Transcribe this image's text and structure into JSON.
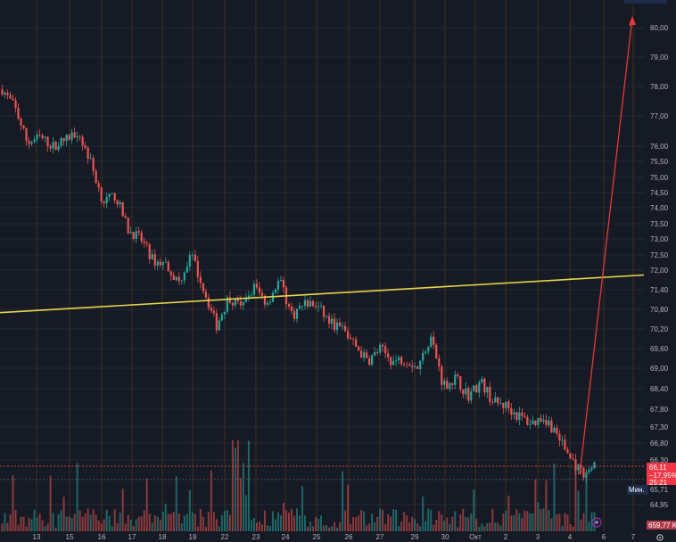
{
  "colors": {
    "background": "#161a25",
    "grid": "#242836",
    "grid_vertical": "#3a3020",
    "up": "#26a69a",
    "down": "#ef5350",
    "trendline": "#e8d74a",
    "arrow": "#e53935",
    "axis_text": "#b2b5be",
    "price_badge": "#f23645",
    "min_badge": "#1e2c4a"
  },
  "price_axis": {
    "labels": [
      "80,00",
      "79,00",
      "78,00",
      "77,00",
      "76,00",
      "75,50",
      "75,00",
      "74,50",
      "74,00",
      "73,50",
      "73,00",
      "72,50",
      "72,00",
      "71,40",
      "70,80",
      "70,20",
      "69,60",
      "69,00",
      "68,40",
      "67,80",
      "67,30",
      "66,80",
      "66,30",
      "64,95"
    ],
    "current_price": "66,11",
    "change_percent": "−17,95%",
    "countdown": "25:21",
    "min_label": "Мин.",
    "min_value": "65,71",
    "volume_badge": "659,77 K"
  },
  "time_axis": {
    "labels": [
      "13",
      "15",
      "16",
      "17",
      "18",
      "19",
      "22",
      "23",
      "24",
      "25",
      "26",
      "27",
      "29",
      "30",
      "Окт",
      "2",
      "3",
      "4",
      "6",
      "7"
    ]
  },
  "icons": {
    "lightning": "lightning-icon",
    "settings": "gear-icon"
  },
  "chart_data": {
    "type": "candlestick",
    "title": "",
    "x": [
      "13",
      "15",
      "16",
      "17",
      "18",
      "19",
      "22",
      "23",
      "24",
      "25",
      "26",
      "27",
      "29",
      "30",
      "Окт",
      "2",
      "3",
      "4",
      "6",
      "7"
    ],
    "close_path": [
      77.9,
      77.3,
      76.1,
      76.3,
      76.0,
      76.2,
      76.5,
      75.5,
      74.2,
      74.4,
      73.3,
      73.0,
      72.3,
      72.2,
      71.6,
      72.5,
      71.4,
      70.3,
      71.2,
      70.8,
      71.5,
      71.0,
      71.7,
      70.6,
      71.0,
      70.9,
      70.4,
      70.2,
      69.7,
      69.2,
      69.6,
      69.2,
      69.3,
      69.0,
      70.0,
      68.5,
      68.7,
      68.2,
      68.6,
      68.0,
      67.9,
      67.6,
      67.4,
      67.6,
      67.1,
      66.4,
      65.9,
      66.1
    ],
    "ylim": [
      64.8,
      80.4
    ],
    "trendline": {
      "start": 70.7,
      "end": 71.85
    },
    "projection_target": 80.4,
    "current_price": 66.11,
    "change_percent": -17.95,
    "min_value": 65.71,
    "volume": "659,77 K",
    "grid": true
  }
}
